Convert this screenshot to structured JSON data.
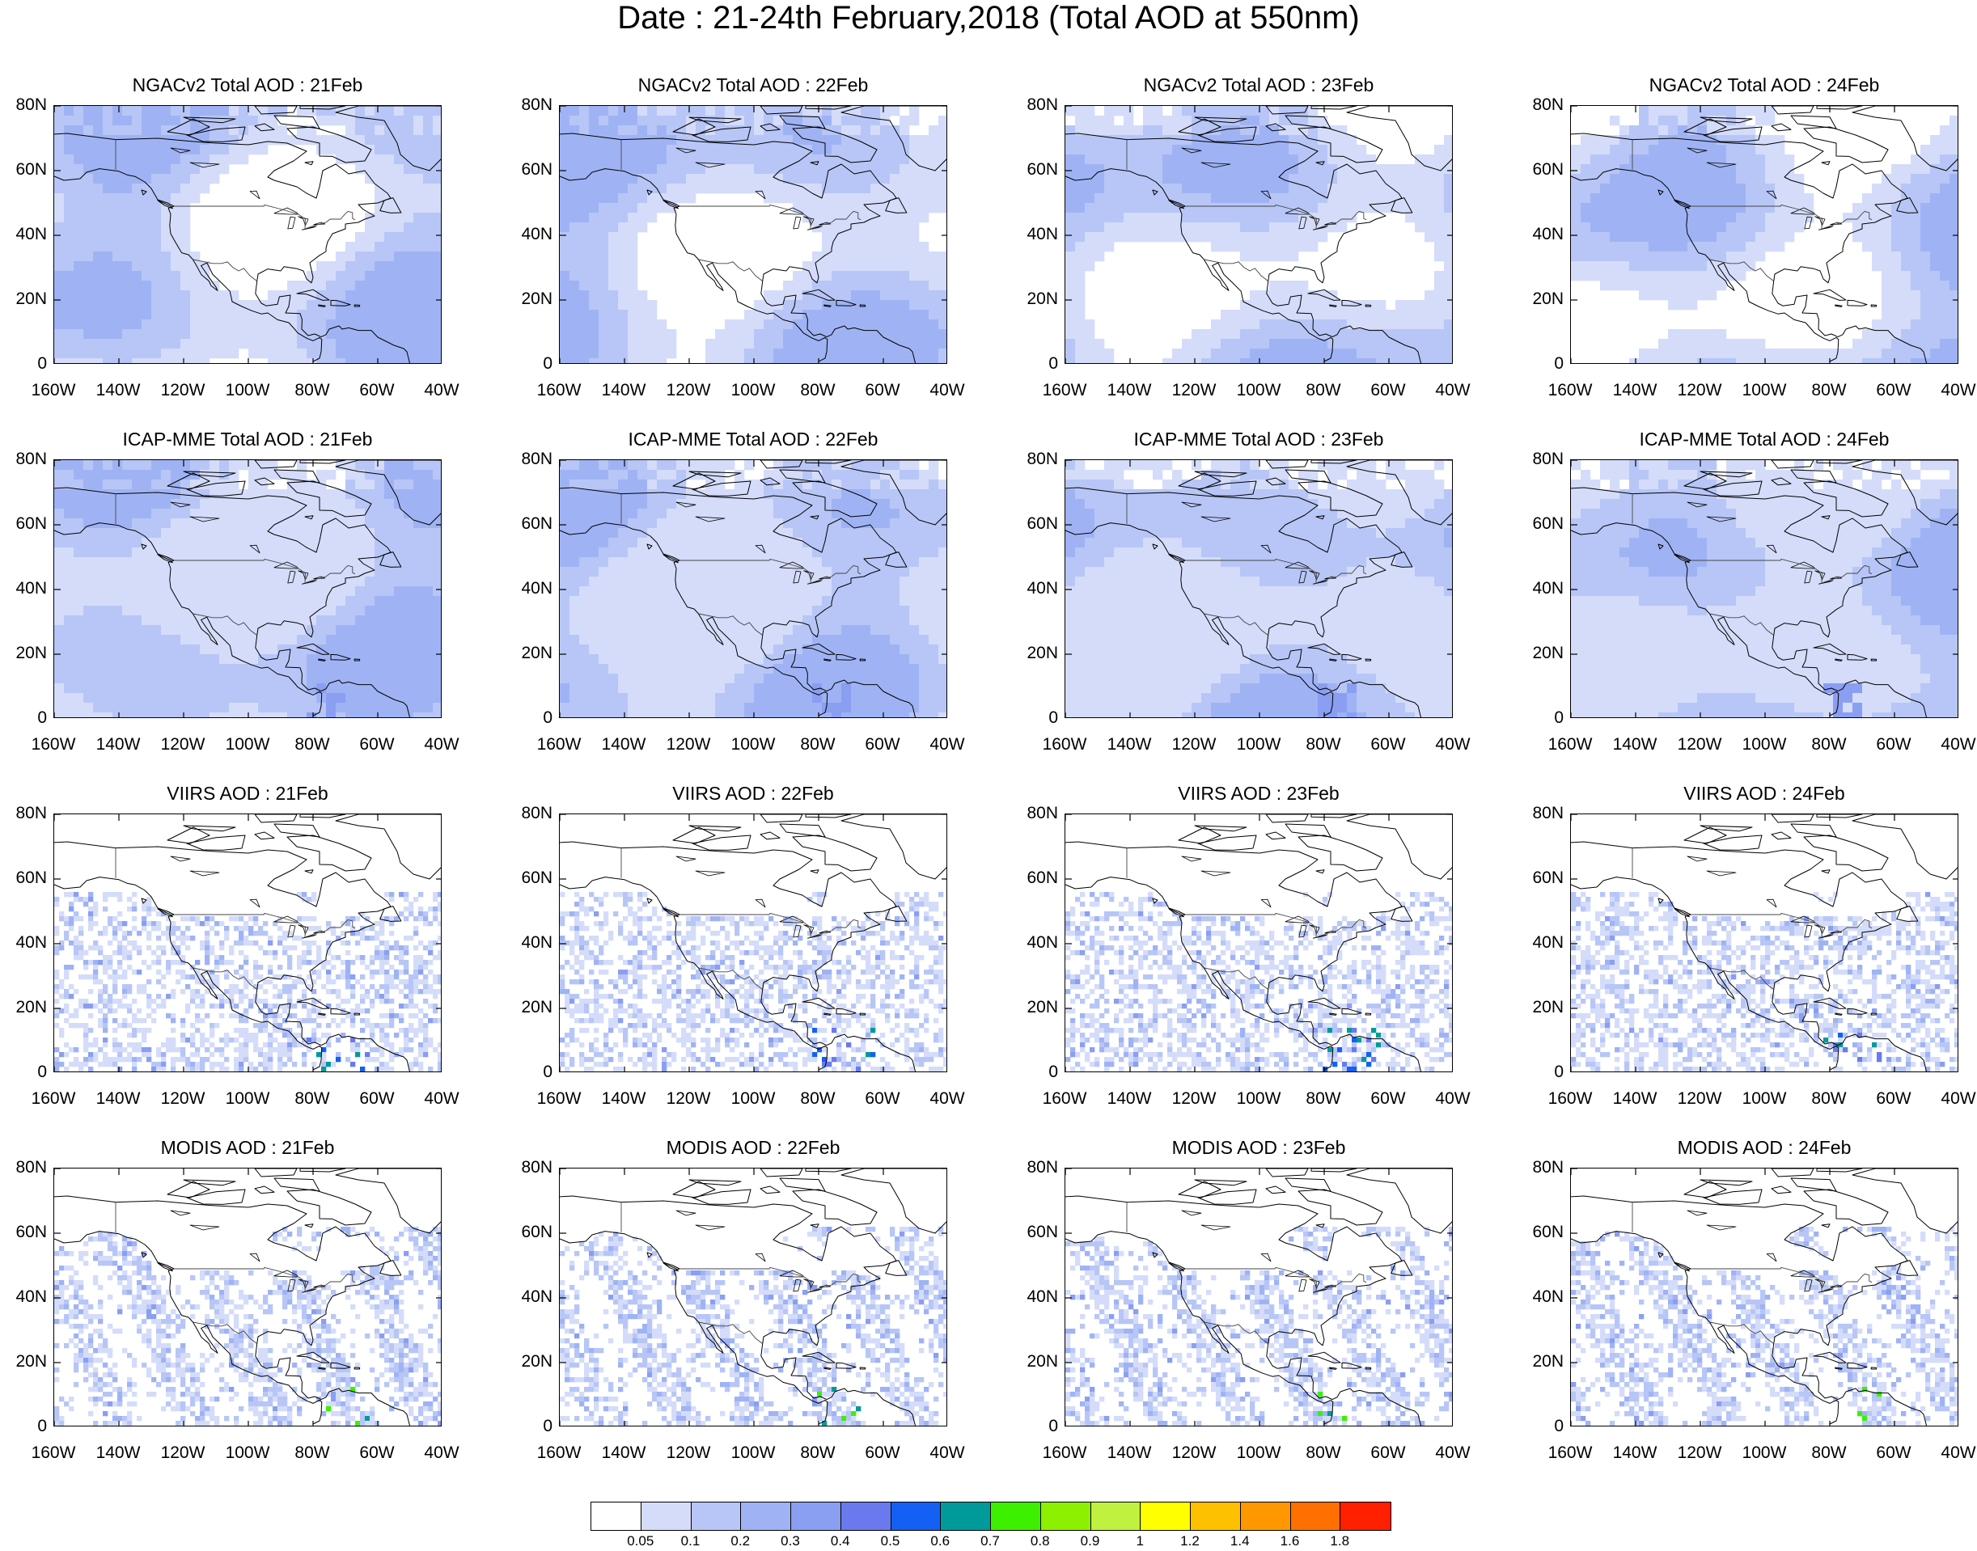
{
  "title": "Date : 21-24th February,2018 (Total AOD at 550nm)",
  "rows": [
    {
      "product": "NGACv2 Total AOD",
      "fill": "model",
      "density": 0.0,
      "panels": [
        "NGACv2 Total AOD : 21Feb",
        "NGACv2 Total AOD : 22Feb",
        "NGACv2 Total AOD : 23Feb",
        "NGACv2 Total AOD : 24Feb"
      ]
    },
    {
      "product": "ICAP-MME Total AOD",
      "fill": "model-high",
      "density": 0.0,
      "panels": [
        "ICAP-MME Total AOD : 21Feb",
        "ICAP-MME Total AOD : 22Feb",
        "ICAP-MME Total AOD : 23Feb",
        "ICAP-MME Total AOD : 24Feb"
      ]
    },
    {
      "product": "VIIRS AOD",
      "fill": "satellite-sparse",
      "density": 0.45,
      "panels": [
        "VIIRS AOD : 21Feb",
        "VIIRS AOD : 22Feb",
        "VIIRS AOD : 23Feb",
        "VIIRS AOD : 24Feb"
      ]
    },
    {
      "product": "MODIS AOD",
      "fill": "satellite-swath",
      "density": 0.62,
      "panels": [
        "MODIS AOD : 21Feb",
        "MODIS AOD : 22Feb",
        "MODIS AOD : 23Feb",
        "MODIS AOD : 24Feb"
      ]
    }
  ],
  "map": {
    "lon_range": [
      -160,
      -40
    ],
    "lat_range": [
      0,
      80
    ],
    "x_ticks": [
      "160W",
      "140W",
      "120W",
      "100W",
      "80W",
      "60W",
      "40W"
    ],
    "y_ticks": [
      "0",
      "20N",
      "40N",
      "60N",
      "80N"
    ]
  },
  "colorbar": {
    "levels": [
      "0.05",
      "0.1",
      "0.2",
      "0.3",
      "0.4",
      "0.5",
      "0.6",
      "0.7",
      "0.8",
      "0.9",
      "1",
      "1.2",
      "1.4",
      "1.6",
      "1.8"
    ],
    "colors": [
      "#ffffff",
      "#d4dcfa",
      "#b7c6f6",
      "#9fb3f4",
      "#8a9ef2",
      "#6a7aee",
      "#1460f4",
      "#009a9a",
      "#3df000",
      "#8cf000",
      "#c0f040",
      "#ffff00",
      "#ffc000",
      "#ff9800",
      "#ff7000",
      "#ff2000"
    ]
  }
}
